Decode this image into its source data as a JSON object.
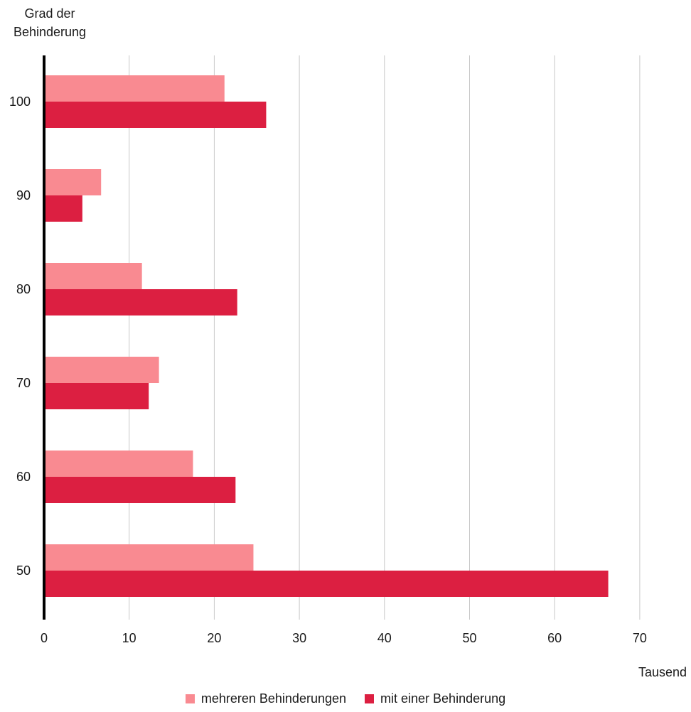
{
  "chart_data": {
    "type": "bar",
    "orientation": "horizontal",
    "title": "",
    "ylabel_lines": [
      "Grad der",
      "Behinderung"
    ],
    "xlabel": "Tausend",
    "categories": [
      "100",
      "90",
      "80",
      "70",
      "60",
      "50"
    ],
    "series": [
      {
        "name": "mehreren Behinderungen",
        "color": "#f98a91",
        "values": [
          21.2,
          6.7,
          11.5,
          13.5,
          17.5,
          24.6
        ]
      },
      {
        "name": "mit einer Behinderung",
        "color": "#dc1f41",
        "values": [
          26.1,
          4.5,
          22.7,
          12.3,
          22.5,
          66.3
        ]
      }
    ],
    "xlim": [
      0,
      70
    ],
    "xticks": [
      "0",
      "10",
      "20",
      "30",
      "40",
      "50",
      "60",
      "70"
    ],
    "grid": true,
    "legend_position": "bottom"
  }
}
